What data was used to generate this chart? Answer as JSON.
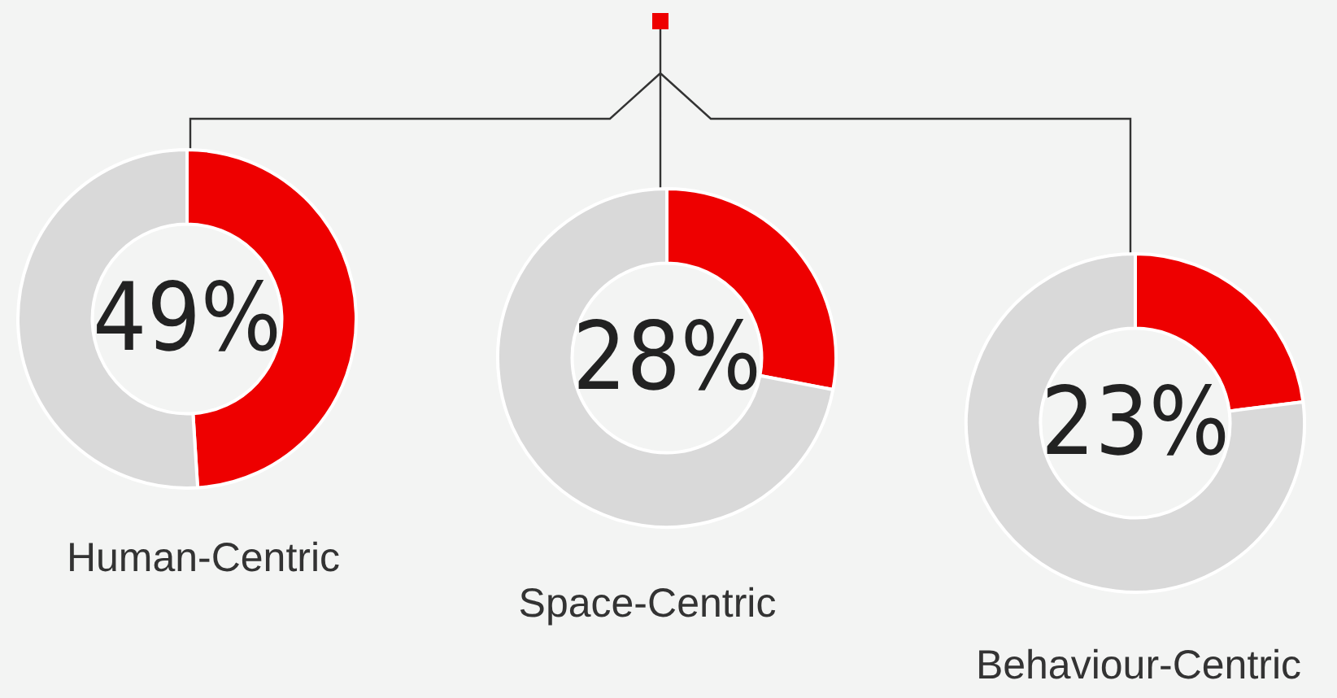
{
  "chart_data": [
    {
      "type": "donut",
      "title": "Human-Centric",
      "categories": [
        null,
        null
      ],
      "values": [
        49,
        51
      ],
      "colors": [
        "#ee0000",
        "#d9d9d9"
      ],
      "value_labels": [
        "49%",
        null
      ],
      "legend": false
    },
    {
      "type": "donut",
      "title": "Space-Centric",
      "categories": [
        null,
        null
      ],
      "values": [
        28,
        72
      ],
      "colors": [
        "#ee0000",
        "#d9d9d9"
      ],
      "value_labels": [
        "28%",
        null
      ],
      "legend": false
    },
    {
      "type": "donut",
      "title": "Behaviour-Centric",
      "categories": [
        null,
        null
      ],
      "values": [
        23,
        77
      ],
      "colors": [
        "#ee0000",
        "#d9d9d9"
      ],
      "value_labels": [
        "23%",
        null
      ],
      "legend": false
    }
  ]
}
